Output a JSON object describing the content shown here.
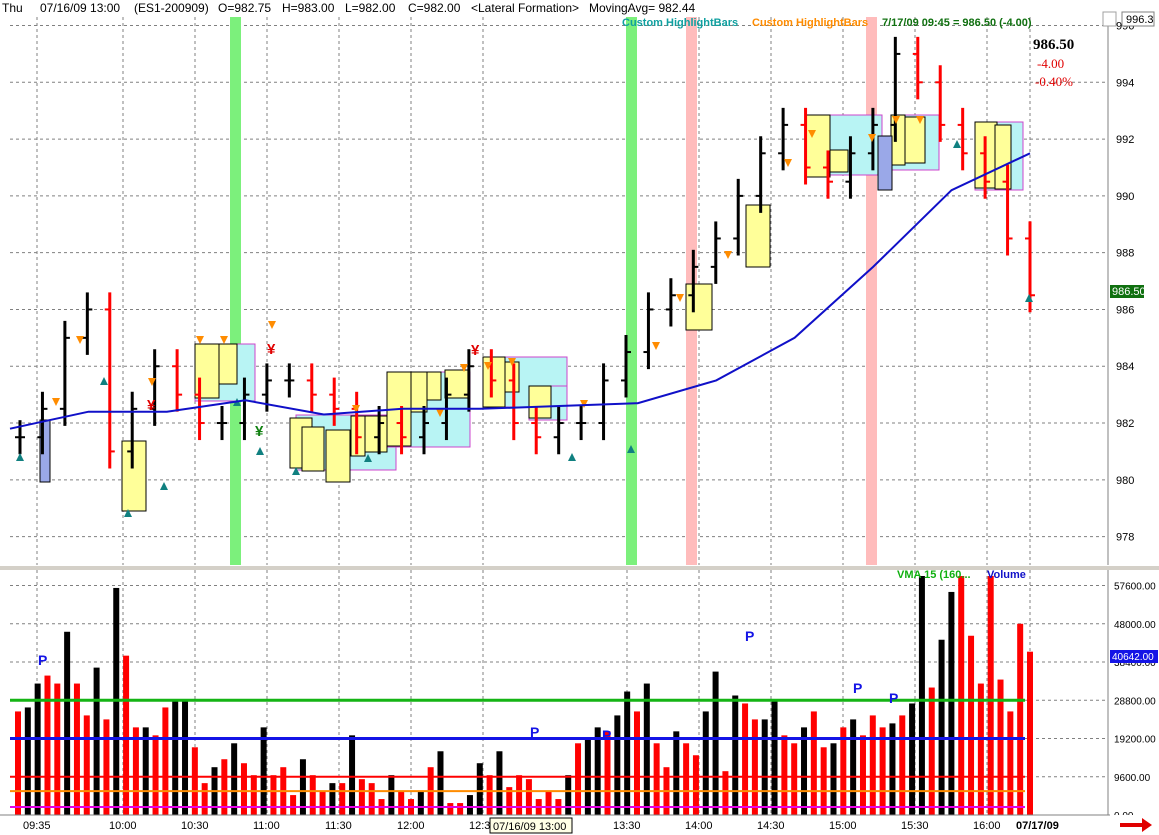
{
  "header": {
    "day": "Thu",
    "datetime": "07/16/09 13:00",
    "symbol": "(ES1-200909)",
    "open": "O=982.75",
    "high": "H=983.00",
    "low": "L=982.00",
    "close": "C=982.00",
    "pattern": "<Lateral Formation>",
    "ma_label": "MovingAvg= 982.44",
    "legend_a": "Custom HighlightBars",
    "legend_b": "Custom HighlightBars",
    "last_info": "7/17/09 09:45 = 986.50 (-4.00)",
    "top_price_box": "996.3"
  },
  "quote": {
    "price": "986.50",
    "change": "-4.00",
    "change_pct": "-0.40%"
  },
  "colors": {
    "up_bar": "#000000",
    "down_bar": "#ff0000",
    "moving_avg": "#1010c8",
    "green_band": "#7cf07c",
    "pink_band": "#ffbcbc",
    "highlight_fill": "#ffff99",
    "box_fill": "#b8f4f4",
    "grid": "#808080",
    "volume_green_line": "#14b414",
    "volume_blue_line": "#1414e6",
    "volume_red_line": "#ff0000",
    "volume_orange_line": "#ff8c00",
    "volume_magenta_line": "#e600e6"
  },
  "price_panel": {
    "y_ticks": [
      "996",
      "994",
      "992",
      "990",
      "988",
      "986",
      "984",
      "982",
      "980",
      "978"
    ],
    "last_price_tag": "986.50"
  },
  "volume_panel": {
    "label_vma": "VMA 15 (160...",
    "label_volume": "Volume",
    "y_ticks": [
      "57600.00",
      "48000.00",
      "38400.00",
      "28800.00",
      "19200.00",
      "9600.00",
      "0.00"
    ],
    "last_volume_tag": "40642.00",
    "p_marker": "P"
  },
  "x_axis": {
    "labels": [
      "09:35",
      "10:00",
      "10:30",
      "11:00",
      "11:30",
      "12:00",
      "12:30",
      "13:30",
      "14:00",
      "14:30",
      "15:00",
      "15:30",
      "16:00",
      "07/17/09"
    ],
    "cursor_label": "07/16/09 13:00"
  },
  "chart_data": [
    {
      "type": "line",
      "title": "",
      "series": [
        {
          "name": "MovingAvg",
          "x": [
            "09:35",
            "10:00",
            "10:30",
            "11:00",
            "11:30",
            "12:00",
            "12:30",
            "13:00",
            "13:30",
            "14:00",
            "14:30",
            "15:00",
            "15:30",
            "16:00"
          ],
          "values": [
            981.8,
            982.4,
            982.4,
            982.8,
            982.3,
            982.5,
            982.5,
            982.6,
            982.7,
            983.5,
            985.0,
            987.5,
            990.2,
            991.5
          ]
        }
      ],
      "ylim": [
        977,
        996.3
      ],
      "close_approx": [
        981.5,
        982.5,
        985,
        986,
        981,
        982.5,
        984,
        983,
        982,
        982,
        983,
        983.5,
        983.5,
        983,
        982.5,
        981.5,
        982,
        981.5,
        982,
        983,
        984,
        983.5,
        982,
        981.5,
        982,
        982,
        983.5,
        984.5,
        986,
        986.5,
        987.5,
        988.5,
        990,
        991.5,
        992.5,
        991,
        990.5,
        991.5,
        992.5,
        995,
        994,
        992.5,
        991.5,
        990.5,
        988.5,
        986.5
      ],
      "last": 986.5
    },
    {
      "type": "bar",
      "title": "",
      "series": [
        {
          "name": "Volume",
          "values": [
            26000,
            27000,
            33000,
            35000,
            33000,
            46000,
            33000,
            25000,
            37000,
            24000,
            57000,
            40000,
            22000,
            22000,
            20000,
            27000,
            29000,
            29000,
            17000,
            8000,
            12000,
            14000,
            18000,
            13000,
            10000,
            22000,
            10000,
            12000,
            5000,
            14000,
            10000,
            6000,
            8000,
            8000,
            20000,
            9000,
            8000,
            4000,
            10000,
            6000,
            4000,
            6000,
            12000,
            16000,
            3000,
            3000,
            5000,
            13000,
            10000,
            16000,
            7000,
            10000,
            9000,
            4000,
            6000,
            4000,
            10000,
            18000,
            19000,
            22000,
            21000,
            25000,
            31000,
            26000,
            33000,
            18000,
            12000,
            21000,
            18000,
            15000,
            26000,
            36000,
            11000,
            30000,
            28000,
            24000,
            24000,
            29000,
            20000,
            18000,
            22000,
            26000,
            17000,
            18000,
            22000,
            24000,
            20000,
            25000,
            22000,
            23000,
            25000,
            28000,
            60000,
            32000,
            44000,
            56000,
            60000,
            45000,
            33000,
            60000,
            34000,
            26000,
            48000,
            41000
          ]
        }
      ],
      "ylim": [
        0,
        60000
      ],
      "reference_lines": [
        28800,
        19200,
        9600,
        6000,
        2000
      ],
      "last": 40642
    }
  ]
}
